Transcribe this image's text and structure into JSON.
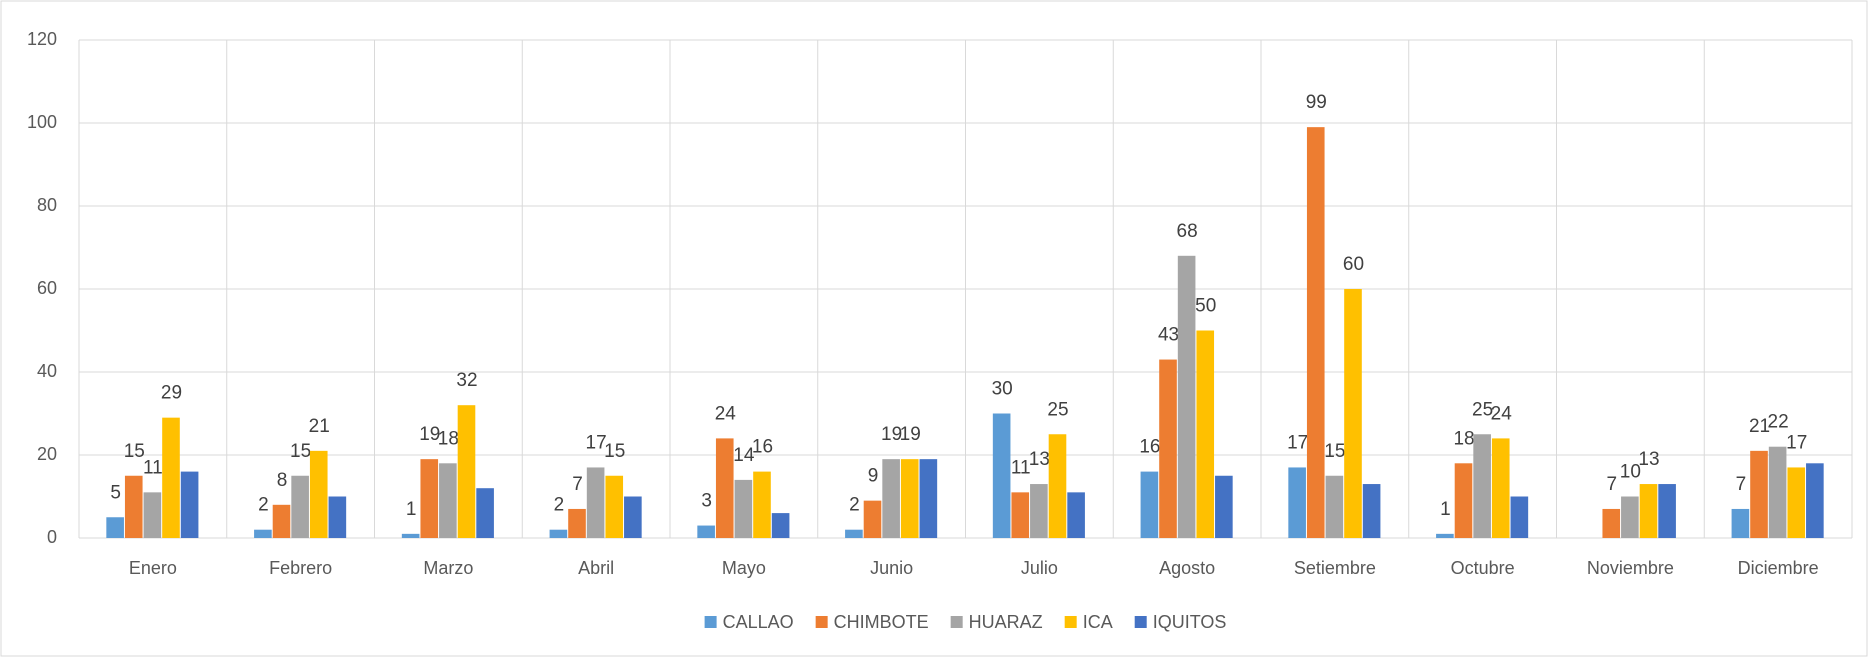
{
  "chart_data": {
    "type": "bar",
    "categories": [
      "Enero",
      "Febrero",
      "Marzo",
      "Abril",
      "Mayo",
      "Junio",
      "Julio",
      "Agosto",
      "Setiembre",
      "Octubre",
      "Noviembre",
      "Diciembre"
    ],
    "series": [
      {
        "name": "CALLAO",
        "color": "#5b9bd5",
        "data_labels": true,
        "values": [
          5,
          2,
          1,
          2,
          3,
          2,
          30,
          16,
          17,
          1,
          null,
          7
        ]
      },
      {
        "name": "CHIMBOTE",
        "color": "#ed7d31",
        "data_labels": true,
        "values": [
          15,
          8,
          19,
          7,
          24,
          9,
          11,
          43,
          99,
          18,
          7,
          21
        ]
      },
      {
        "name": "HUARAZ",
        "color": "#a5a5a5",
        "data_labels": true,
        "values": [
          11,
          15,
          18,
          17,
          14,
          19,
          13,
          68,
          15,
          25,
          10,
          22
        ]
      },
      {
        "name": "ICA",
        "color": "#ffc000",
        "data_labels": true,
        "values": [
          29,
          21,
          32,
          15,
          16,
          19,
          25,
          50,
          60,
          24,
          13,
          17
        ]
      },
      {
        "name": "IQUITOS",
        "color": "#4472c4",
        "data_labels": false,
        "values": [
          16,
          10,
          12,
          10,
          6,
          19,
          11,
          15,
          13,
          10,
          13,
          18
        ]
      }
    ],
    "ylim": [
      0,
      120
    ],
    "yticks": [
      0,
      20,
      40,
      60,
      80,
      100,
      120
    ],
    "grid": true,
    "legend": "bottom"
  }
}
